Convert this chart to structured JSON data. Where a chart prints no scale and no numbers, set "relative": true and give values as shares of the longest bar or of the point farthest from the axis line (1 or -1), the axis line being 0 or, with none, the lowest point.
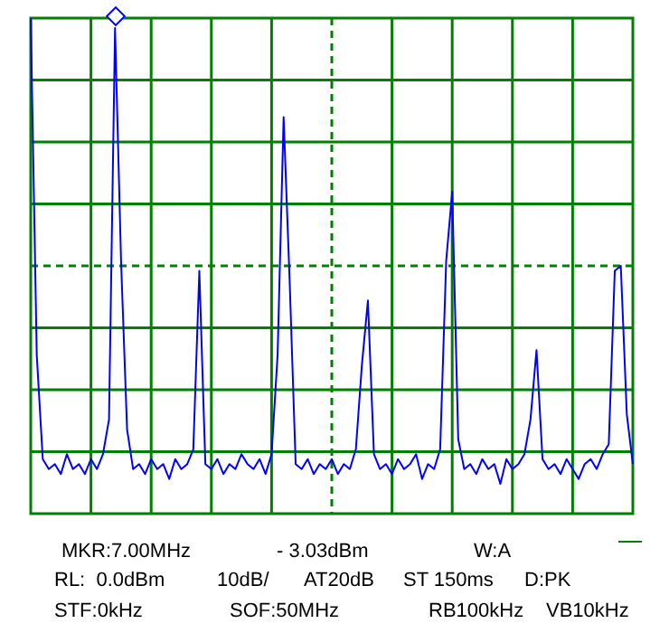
{
  "chart_data": {
    "type": "line",
    "relative": true,
    "grid": true,
    "legend": false,
    "marker": "none",
    "line_style": "solid",
    "ref_lines": [
      {
        "axis": "y",
        "value": 0.5,
        "color": "#008000",
        "line_style": "dashed"
      }
    ],
    "categories": [
      null,
      null,
      null,
      null,
      null,
      null,
      null,
      null,
      null,
      null,
      null,
      null,
      null,
      null,
      null,
      null,
      null,
      null,
      null,
      null,
      null,
      null,
      null,
      null,
      null,
      null,
      null,
      null,
      null,
      null,
      null,
      null,
      null,
      null,
      null,
      null,
      null,
      null,
      null,
      null,
      null,
      null,
      null,
      null,
      null,
      null,
      null,
      null,
      null,
      null,
      null,
      null,
      null,
      null,
      null,
      null,
      null,
      null,
      null,
      null,
      null,
      null,
      null,
      null,
      null,
      null,
      null,
      null,
      null,
      null,
      null,
      null,
      null,
      null,
      null,
      null,
      null,
      null,
      null,
      null,
      null,
      null,
      null,
      null,
      null,
      null,
      null,
      null,
      null,
      null,
      null,
      null,
      null,
      null,
      null,
      null,
      null,
      null,
      null,
      null,
      null
    ],
    "series": [
      {
        "color": "#0000ff",
        "values": [
          1.0,
          0.32,
          0.11,
          0.09,
          0.1,
          0.08,
          0.12,
          0.09,
          0.1,
          0.08,
          0.11,
          0.09,
          0.12,
          0.19,
          0.98,
          0.51,
          0.17,
          0.09,
          0.1,
          0.08,
          0.11,
          0.09,
          0.1,
          0.07,
          0.11,
          0.09,
          0.1,
          0.13,
          0.49,
          0.1,
          0.09,
          0.11,
          0.08,
          0.1,
          0.09,
          0.12,
          0.1,
          0.09,
          0.11,
          0.08,
          0.12,
          0.32,
          0.8,
          0.47,
          0.1,
          0.09,
          0.11,
          0.08,
          0.1,
          0.09,
          0.11,
          0.08,
          0.1,
          0.09,
          0.13,
          0.3,
          0.43,
          0.12,
          0.09,
          0.1,
          0.08,
          0.11,
          0.09,
          0.1,
          0.12,
          0.07,
          0.1,
          0.09,
          0.13,
          0.51,
          0.65,
          0.15,
          0.09,
          0.1,
          0.08,
          0.11,
          0.09,
          0.1,
          0.06,
          0.11,
          0.09,
          0.1,
          0.12,
          0.19,
          0.33,
          0.11,
          0.09,
          0.1,
          0.08,
          0.11,
          0.09,
          0.07,
          0.1,
          0.11,
          0.09,
          0.12,
          0.14,
          0.49,
          0.5,
          0.2,
          0.1
        ]
      }
    ],
    "annotations": [
      "MKR:7.00MHz",
      "- 3.03dBm",
      "W:A",
      "RL:  0.0dBm",
      "10dB/",
      "AT20dB",
      "ST 150ms",
      "D:PK",
      "STF:0kHz",
      "SOF:50MHz",
      "RB100kHz",
      "VB10kHz"
    ]
  }
}
